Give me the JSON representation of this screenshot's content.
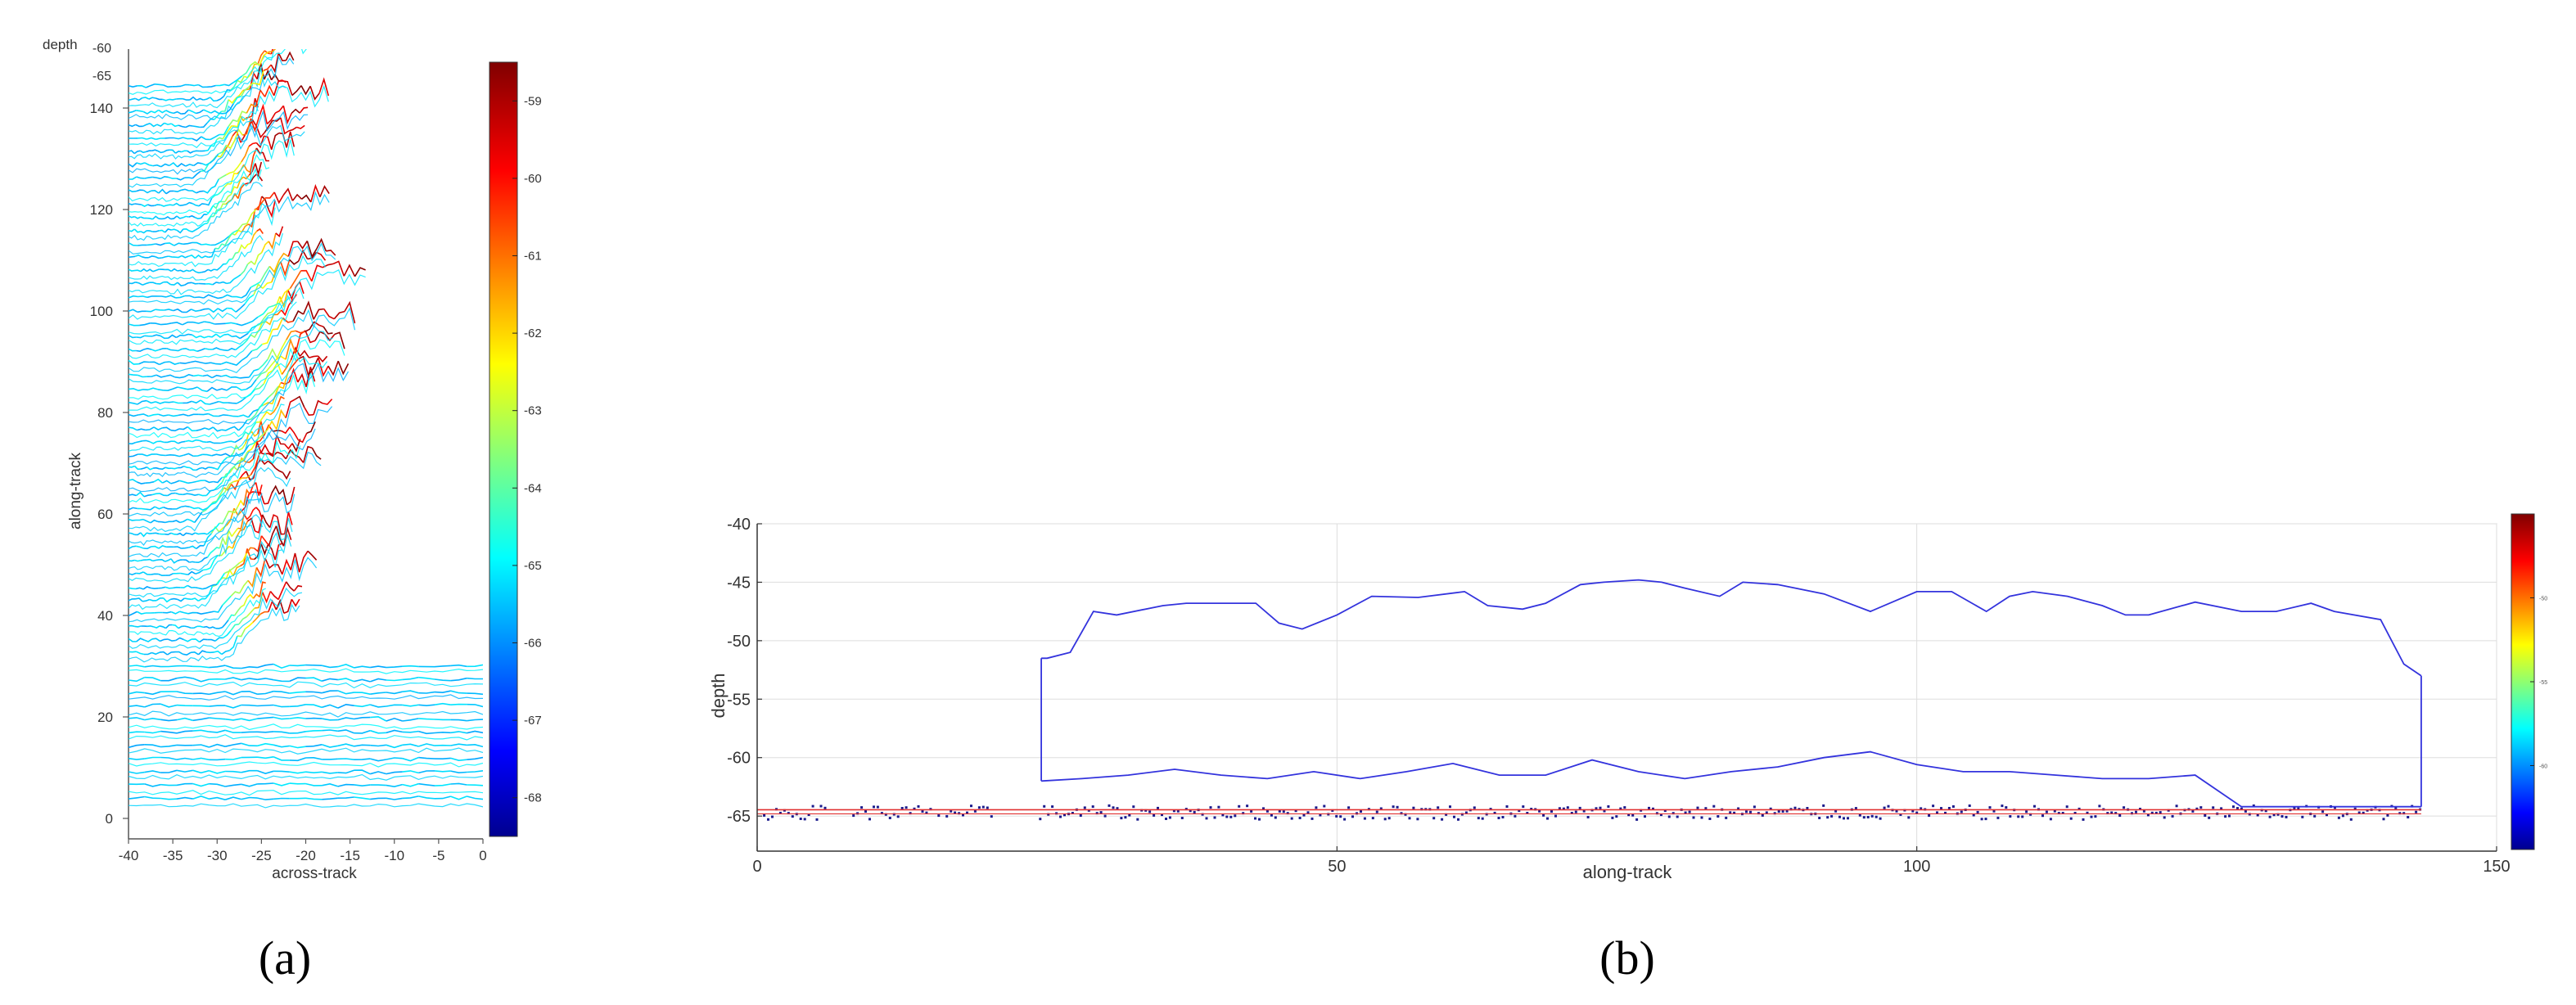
{
  "figure": {
    "panel_a_label": "(a)",
    "panel_b_label": "(b)"
  },
  "colormap": "jet",
  "chart_data": [
    {
      "type": "line",
      "panel": "a",
      "description_of_content": "waterfall of across-track depth profiles stacked along-track",
      "xlabel": "across-track",
      "ylabel": "along-track",
      "zlabel": "depth",
      "xlim": [
        -40,
        0
      ],
      "ylim": [
        0,
        150
      ],
      "zlim": [
        -65,
        -60
      ],
      "x_ticks": [
        -40,
        -35,
        -30,
        -25,
        -20,
        -15,
        -10,
        -5,
        0
      ],
      "y_ticks": [
        0,
        20,
        40,
        60,
        80,
        100,
        120,
        140
      ],
      "z_ticks": [
        -60,
        -65
      ],
      "colorbar": {
        "ticks": [
          -59,
          -60,
          -61,
          -62,
          -63,
          -64,
          -65,
          -66,
          -67,
          -68
        ],
        "range": [
          -68.5,
          -58.5
        ]
      },
      "profiles": {
        "along_track_start": 4,
        "along_track_end": 146,
        "spacing": 2.6,
        "wall_region_start": 33,
        "wall_x_mean": -26,
        "wall_x_amplitude": 3,
        "wall_top_depth": -59,
        "flat_depth": -65.3,
        "full_width_below": 31
      }
    },
    {
      "type": "scatter",
      "panel": "b",
      "xlabel": "along-track",
      "ylabel": "depth",
      "xlim": [
        0,
        150
      ],
      "ylim": [
        -68,
        -40
      ],
      "x_ticks": [
        0,
        50,
        100,
        150
      ],
      "y_ticks": [
        -40,
        -45,
        -50,
        -55,
        -60,
        -65
      ],
      "grid": true,
      "colorbar": {
        "range": [
          -65,
          -45
        ],
        "ticks": [
          -50,
          -55,
          -60
        ],
        "tick_labels": [
          "-50",
          "-55",
          "-60"
        ]
      },
      "seafloor_line": {
        "x": [
          0,
          143.5
        ],
        "y": [
          -64.6,
          -64.6
        ],
        "color": "#e03030"
      },
      "upper_envelope": {
        "x": [
          24.5,
          25,
          27,
          29,
          31,
          35,
          37,
          43,
          45,
          47,
          50,
          53,
          57,
          61,
          63,
          66,
          68,
          71,
          73,
          76,
          78,
          80,
          83,
          85,
          88,
          92,
          96,
          100,
          103,
          106,
          108,
          110,
          113,
          116,
          118,
          120,
          124,
          128,
          131,
          134,
          136,
          140,
          142,
          143.5
        ],
        "y": [
          -51.5,
          -51.5,
          -51,
          -47.5,
          -47.8,
          -47,
          -46.8,
          -46.8,
          -48.5,
          -49,
          -47.8,
          -46.2,
          -46.3,
          -45.8,
          -47,
          -47.3,
          -46.8,
          -45.2,
          -45,
          -44.8,
          -45,
          -45.5,
          -46.2,
          -45,
          -45.2,
          -46,
          -47.5,
          -45.8,
          -45.8,
          -47.5,
          -46.2,
          -45.8,
          -46.2,
          -47,
          -47.8,
          -47.8,
          -46.7,
          -47.5,
          -47.5,
          -46.8,
          -47.5,
          -48.2,
          -52,
          -53
        ]
      },
      "lower_envelope": {
        "x": [
          24.5,
          28,
          32,
          36,
          40,
          44,
          48,
          52,
          56,
          60,
          64,
          68,
          72,
          76,
          80,
          84,
          88,
          92,
          96,
          100,
          104,
          108,
          112,
          116,
          120,
          124,
          128,
          133,
          138,
          143.5
        ],
        "y": [
          -62,
          -61.8,
          -61.5,
          -61,
          -61.5,
          -61.8,
          -61.2,
          -61.8,
          -61.2,
          -60.5,
          -61.5,
          -61.5,
          -60.2,
          -61.2,
          -61.8,
          -61.2,
          -60.8,
          -60,
          -59.5,
          -60.6,
          -61.2,
          -61.2,
          -61.5,
          -61.8,
          -61.8,
          -61.5,
          -64.2,
          -64.2,
          -64.2,
          -64.2
        ]
      },
      "point_clusters": {
        "columns_start": 25,
        "columns_end": 143,
        "seafloor_points_depth": -64.6
      }
    }
  ]
}
